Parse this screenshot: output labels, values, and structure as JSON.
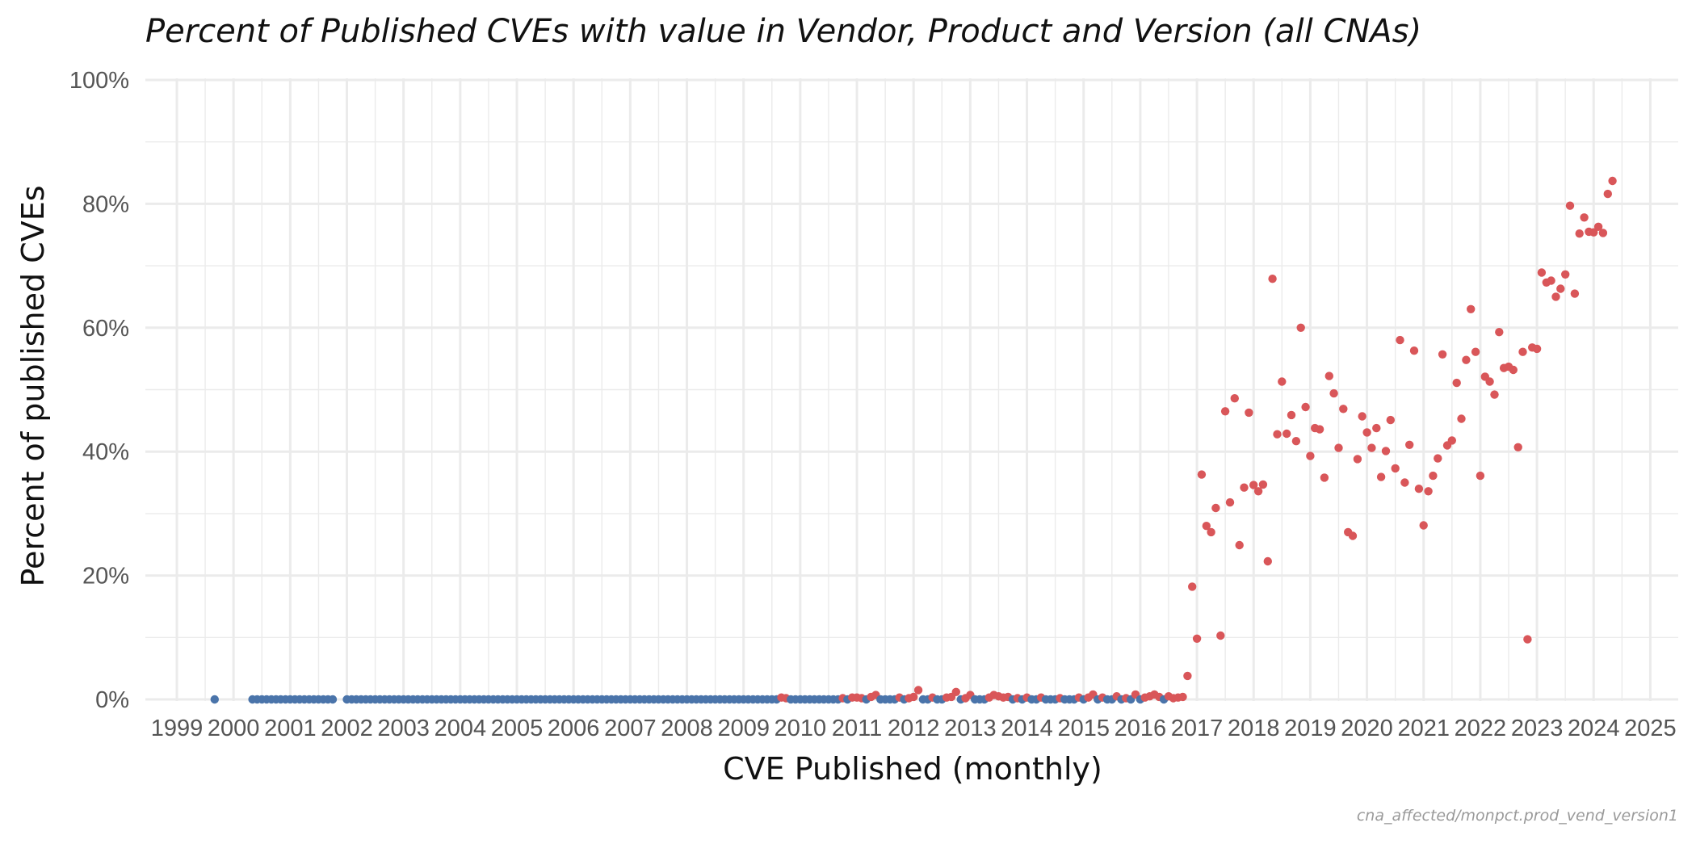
{
  "chart_data": {
    "type": "scatter",
    "title": "Percent of Published CVEs with value in Vendor, Product and Version (all CNAs)",
    "xlabel": "CVE Published (monthly)",
    "ylabel": "Percent of published CVEs",
    "caption": "cna_affected/monpct.prod_vend_version1",
    "x_ticks": [
      "1999",
      "2000",
      "2001",
      "2002",
      "2003",
      "2004",
      "2005",
      "2006",
      "2007",
      "2008",
      "2009",
      "2010",
      "2011",
      "2012",
      "2013",
      "2014",
      "2015",
      "2016",
      "2017",
      "2018",
      "2019",
      "2020",
      "2021",
      "2022",
      "2023",
      "2024",
      "2025"
    ],
    "y_ticks": [
      "0%",
      "20%",
      "40%",
      "60%",
      "80%",
      "100%"
    ],
    "xlim": [
      "1999-01",
      "2025-01"
    ],
    "ylim": [
      0,
      100
    ],
    "grid": true,
    "colors": {
      "zero": "#4a74aa",
      "nonzero": "#d95659",
      "grid": "#ebebeb"
    },
    "series": [
      {
        "name": "",
        "points": [
          [
            "1999-09",
            0.0
          ],
          [
            "2000-05",
            0.0
          ],
          [
            "2000-06",
            0.0
          ],
          [
            "2000-07",
            0.0
          ],
          [
            "2000-08",
            0.0
          ],
          [
            "2000-09",
            0.0
          ],
          [
            "2000-10",
            0.0
          ],
          [
            "2000-11",
            0.0
          ],
          [
            "2000-12",
            0.0
          ],
          [
            "2001-01",
            0.0
          ],
          [
            "2001-02",
            0.0
          ],
          [
            "2001-03",
            0.0
          ],
          [
            "2001-04",
            0.0
          ],
          [
            "2001-05",
            0.0
          ],
          [
            "2001-06",
            0.0
          ],
          [
            "2001-07",
            0.0
          ],
          [
            "2001-08",
            0.0
          ],
          [
            "2001-09",
            0.0
          ],
          [
            "2001-10",
            0.0
          ],
          [
            "2002-01",
            0.0
          ],
          [
            "2002-02",
            0.0
          ],
          [
            "2002-03",
            0.0
          ],
          [
            "2002-04",
            0.0
          ],
          [
            "2002-05",
            0.0
          ],
          [
            "2002-06",
            0.0
          ],
          [
            "2002-07",
            0.0
          ],
          [
            "2002-08",
            0.0
          ],
          [
            "2002-09",
            0.0
          ],
          [
            "2002-10",
            0.0
          ],
          [
            "2002-11",
            0.0
          ],
          [
            "2002-12",
            0.0
          ],
          [
            "2003-01",
            0.0
          ],
          [
            "2003-02",
            0.0
          ],
          [
            "2003-03",
            0.0
          ],
          [
            "2003-04",
            0.0
          ],
          [
            "2003-05",
            0.0
          ],
          [
            "2003-06",
            0.0
          ],
          [
            "2003-07",
            0.0
          ],
          [
            "2003-08",
            0.0
          ],
          [
            "2003-09",
            0.0
          ],
          [
            "2003-10",
            0.0
          ],
          [
            "2003-11",
            0.0
          ],
          [
            "2003-12",
            0.0
          ],
          [
            "2004-01",
            0.0
          ],
          [
            "2004-02",
            0.0
          ],
          [
            "2004-03",
            0.0
          ],
          [
            "2004-04",
            0.0
          ],
          [
            "2004-05",
            0.0
          ],
          [
            "2004-06",
            0.0
          ],
          [
            "2004-07",
            0.0
          ],
          [
            "2004-08",
            0.0
          ],
          [
            "2004-09",
            0.0
          ],
          [
            "2004-10",
            0.0
          ],
          [
            "2004-11",
            0.0
          ],
          [
            "2004-12",
            0.0
          ],
          [
            "2005-01",
            0.0
          ],
          [
            "2005-02",
            0.0
          ],
          [
            "2005-03",
            0.0
          ],
          [
            "2005-04",
            0.0
          ],
          [
            "2005-05",
            0.0
          ],
          [
            "2005-06",
            0.0
          ],
          [
            "2005-07",
            0.0
          ],
          [
            "2005-08",
            0.0
          ],
          [
            "2005-09",
            0.0
          ],
          [
            "2005-10",
            0.0
          ],
          [
            "2005-11",
            0.0
          ],
          [
            "2005-12",
            0.0
          ],
          [
            "2006-01",
            0.0
          ],
          [
            "2006-02",
            0.0
          ],
          [
            "2006-03",
            0.0
          ],
          [
            "2006-04",
            0.0
          ],
          [
            "2006-05",
            0.0
          ],
          [
            "2006-06",
            0.0
          ],
          [
            "2006-07",
            0.0
          ],
          [
            "2006-08",
            0.0
          ],
          [
            "2006-09",
            0.0
          ],
          [
            "2006-10",
            0.0
          ],
          [
            "2006-11",
            0.0
          ],
          [
            "2006-12",
            0.0
          ],
          [
            "2007-01",
            0.0
          ],
          [
            "2007-02",
            0.0
          ],
          [
            "2007-03",
            0.0
          ],
          [
            "2007-04",
            0.0
          ],
          [
            "2007-05",
            0.0
          ],
          [
            "2007-06",
            0.0
          ],
          [
            "2007-07",
            0.0
          ],
          [
            "2007-08",
            0.0
          ],
          [
            "2007-09",
            0.0
          ],
          [
            "2007-10",
            0.0
          ],
          [
            "2007-11",
            0.0
          ],
          [
            "2007-12",
            0.0
          ],
          [
            "2008-01",
            0.0
          ],
          [
            "2008-02",
            0.0
          ],
          [
            "2008-03",
            0.0
          ],
          [
            "2008-04",
            0.0
          ],
          [
            "2008-05",
            0.0
          ],
          [
            "2008-06",
            0.0
          ],
          [
            "2008-07",
            0.0
          ],
          [
            "2008-08",
            0.0
          ],
          [
            "2008-09",
            0.0
          ],
          [
            "2008-10",
            0.0
          ],
          [
            "2008-11",
            0.0
          ],
          [
            "2008-12",
            0.0
          ],
          [
            "2009-01",
            0.0
          ],
          [
            "2009-02",
            0.0
          ],
          [
            "2009-03",
            0.0
          ],
          [
            "2009-04",
            0.0
          ],
          [
            "2009-05",
            0.0
          ],
          [
            "2009-06",
            0.0
          ],
          [
            "2009-07",
            0.0
          ],
          [
            "2009-08",
            0.0
          ],
          [
            "2009-09",
            0.3
          ],
          [
            "2009-10",
            0.2
          ],
          [
            "2009-11",
            0.0
          ],
          [
            "2009-12",
            0.0
          ],
          [
            "2010-01",
            0.0
          ],
          [
            "2010-02",
            0.0
          ],
          [
            "2010-03",
            0.0
          ],
          [
            "2010-04",
            0.0
          ],
          [
            "2010-05",
            0.0
          ],
          [
            "2010-06",
            0.0
          ],
          [
            "2010-07",
            0.0
          ],
          [
            "2010-08",
            0.0
          ],
          [
            "2010-09",
            0.0
          ],
          [
            "2010-10",
            0.2
          ],
          [
            "2010-11",
            0.0
          ],
          [
            "2010-12",
            0.3
          ],
          [
            "2011-01",
            0.3
          ],
          [
            "2011-02",
            0.2
          ],
          [
            "2011-03",
            0.0
          ],
          [
            "2011-04",
            0.4
          ],
          [
            "2011-05",
            0.7
          ],
          [
            "2011-06",
            0.0
          ],
          [
            "2011-07",
            0.0
          ],
          [
            "2011-08",
            0.0
          ],
          [
            "2011-09",
            0.0
          ],
          [
            "2011-10",
            0.3
          ],
          [
            "2011-11",
            0.0
          ],
          [
            "2011-12",
            0.2
          ],
          [
            "2012-01",
            0.4
          ],
          [
            "2012-02",
            1.5
          ],
          [
            "2012-03",
            0.0
          ],
          [
            "2012-04",
            0.0
          ],
          [
            "2012-05",
            0.3
          ],
          [
            "2012-06",
            0.0
          ],
          [
            "2012-07",
            0.0
          ],
          [
            "2012-08",
            0.3
          ],
          [
            "2012-09",
            0.4
          ],
          [
            "2012-10",
            1.2
          ],
          [
            "2012-11",
            0.0
          ],
          [
            "2012-12",
            0.2
          ],
          [
            "2013-01",
            0.7
          ],
          [
            "2013-02",
            0.0
          ],
          [
            "2013-03",
            0.0
          ],
          [
            "2013-04",
            0.0
          ],
          [
            "2013-05",
            0.3
          ],
          [
            "2013-06",
            0.7
          ],
          [
            "2013-07",
            0.5
          ],
          [
            "2013-08",
            0.3
          ],
          [
            "2013-09",
            0.4
          ],
          [
            "2013-10",
            0.0
          ],
          [
            "2013-11",
            0.2
          ],
          [
            "2013-12",
            0.0
          ],
          [
            "2014-01",
            0.3
          ],
          [
            "2014-02",
            0.0
          ],
          [
            "2014-03",
            0.0
          ],
          [
            "2014-04",
            0.3
          ],
          [
            "2014-05",
            0.0
          ],
          [
            "2014-06",
            0.0
          ],
          [
            "2014-07",
            0.0
          ],
          [
            "2014-08",
            0.2
          ],
          [
            "2014-09",
            0.0
          ],
          [
            "2014-10",
            0.0
          ],
          [
            "2014-11",
            0.0
          ],
          [
            "2014-12",
            0.3
          ],
          [
            "2015-01",
            0.0
          ],
          [
            "2015-02",
            0.3
          ],
          [
            "2015-03",
            0.8
          ],
          [
            "2015-04",
            0.0
          ],
          [
            "2015-05",
            0.3
          ],
          [
            "2015-06",
            0.0
          ],
          [
            "2015-07",
            0.0
          ],
          [
            "2015-08",
            0.5
          ],
          [
            "2015-09",
            0.0
          ],
          [
            "2015-10",
            0.2
          ],
          [
            "2015-11",
            0.0
          ],
          [
            "2015-12",
            0.8
          ],
          [
            "2016-01",
            0.0
          ],
          [
            "2016-02",
            0.3
          ],
          [
            "2016-03",
            0.5
          ],
          [
            "2016-04",
            0.8
          ],
          [
            "2016-05",
            0.4
          ],
          [
            "2016-06",
            0.0
          ],
          [
            "2016-07",
            0.5
          ],
          [
            "2016-08",
            0.2
          ],
          [
            "2016-09",
            0.3
          ],
          [
            "2016-10",
            0.4
          ],
          [
            "2016-11",
            3.8
          ],
          [
            "2016-12",
            18.2
          ],
          [
            "2017-01",
            9.8
          ],
          [
            "2017-02",
            36.3
          ],
          [
            "2017-03",
            28.0
          ],
          [
            "2017-04",
            27.0
          ],
          [
            "2017-05",
            30.9
          ],
          [
            "2017-06",
            10.3
          ],
          [
            "2017-07",
            46.5
          ],
          [
            "2017-08",
            31.8
          ],
          [
            "2017-09",
            48.6
          ],
          [
            "2017-10",
            24.9
          ],
          [
            "2017-11",
            34.2
          ],
          [
            "2017-12",
            46.3
          ],
          [
            "2018-01",
            34.6
          ],
          [
            "2018-02",
            33.6
          ],
          [
            "2018-03",
            34.7
          ],
          [
            "2018-04",
            22.3
          ],
          [
            "2018-05",
            67.9
          ],
          [
            "2018-06",
            42.8
          ],
          [
            "2018-07",
            51.3
          ],
          [
            "2018-08",
            42.9
          ],
          [
            "2018-09",
            45.9
          ],
          [
            "2018-10",
            41.7
          ],
          [
            "2018-11",
            60.0
          ],
          [
            "2018-12",
            47.2
          ],
          [
            "2019-01",
            39.3
          ],
          [
            "2019-02",
            43.8
          ],
          [
            "2019-03",
            43.6
          ],
          [
            "2019-04",
            35.8
          ],
          [
            "2019-05",
            52.2
          ],
          [
            "2019-06",
            49.4
          ],
          [
            "2019-07",
            40.6
          ],
          [
            "2019-08",
            46.9
          ],
          [
            "2019-09",
            27.0
          ],
          [
            "2019-10",
            26.4
          ],
          [
            "2019-11",
            38.8
          ],
          [
            "2019-12",
            45.7
          ],
          [
            "2020-01",
            43.1
          ],
          [
            "2020-02",
            40.6
          ],
          [
            "2020-03",
            43.8
          ],
          [
            "2020-04",
            35.9
          ],
          [
            "2020-05",
            40.1
          ],
          [
            "2020-06",
            45.1
          ],
          [
            "2020-07",
            37.3
          ],
          [
            "2020-08",
            58.0
          ],
          [
            "2020-09",
            35.0
          ],
          [
            "2020-10",
            41.1
          ],
          [
            "2020-11",
            56.3
          ],
          [
            "2020-12",
            34.0
          ],
          [
            "2021-01",
            28.1
          ],
          [
            "2021-02",
            33.6
          ],
          [
            "2021-03",
            36.1
          ],
          [
            "2021-04",
            38.9
          ],
          [
            "2021-05",
            55.7
          ],
          [
            "2021-06",
            41.0
          ],
          [
            "2021-07",
            41.8
          ],
          [
            "2021-08",
            51.1
          ],
          [
            "2021-09",
            45.3
          ],
          [
            "2021-10",
            54.8
          ],
          [
            "2021-11",
            63.0
          ],
          [
            "2021-12",
            56.1
          ],
          [
            "2022-01",
            36.1
          ],
          [
            "2022-02",
            52.1
          ],
          [
            "2022-03",
            51.3
          ],
          [
            "2022-04",
            49.2
          ],
          [
            "2022-05",
            59.3
          ],
          [
            "2022-06",
            53.5
          ],
          [
            "2022-07",
            53.7
          ],
          [
            "2022-08",
            53.2
          ],
          [
            "2022-09",
            40.7
          ],
          [
            "2022-10",
            56.1
          ],
          [
            "2022-11",
            9.7
          ],
          [
            "2022-12",
            56.8
          ],
          [
            "2023-01",
            56.6
          ],
          [
            "2023-02",
            68.9
          ],
          [
            "2023-03",
            67.3
          ],
          [
            "2023-04",
            67.6
          ],
          [
            "2023-05",
            65.0
          ],
          [
            "2023-06",
            66.3
          ],
          [
            "2023-07",
            68.6
          ],
          [
            "2023-08",
            79.7
          ],
          [
            "2023-09",
            65.5
          ],
          [
            "2023-10",
            75.2
          ],
          [
            "2023-11",
            77.8
          ],
          [
            "2023-12",
            75.5
          ],
          [
            "2024-01",
            75.4
          ],
          [
            "2024-02",
            76.3
          ],
          [
            "2024-03",
            75.3
          ],
          [
            "2024-04",
            81.6
          ],
          [
            "2024-05",
            83.7
          ]
        ]
      }
    ]
  }
}
